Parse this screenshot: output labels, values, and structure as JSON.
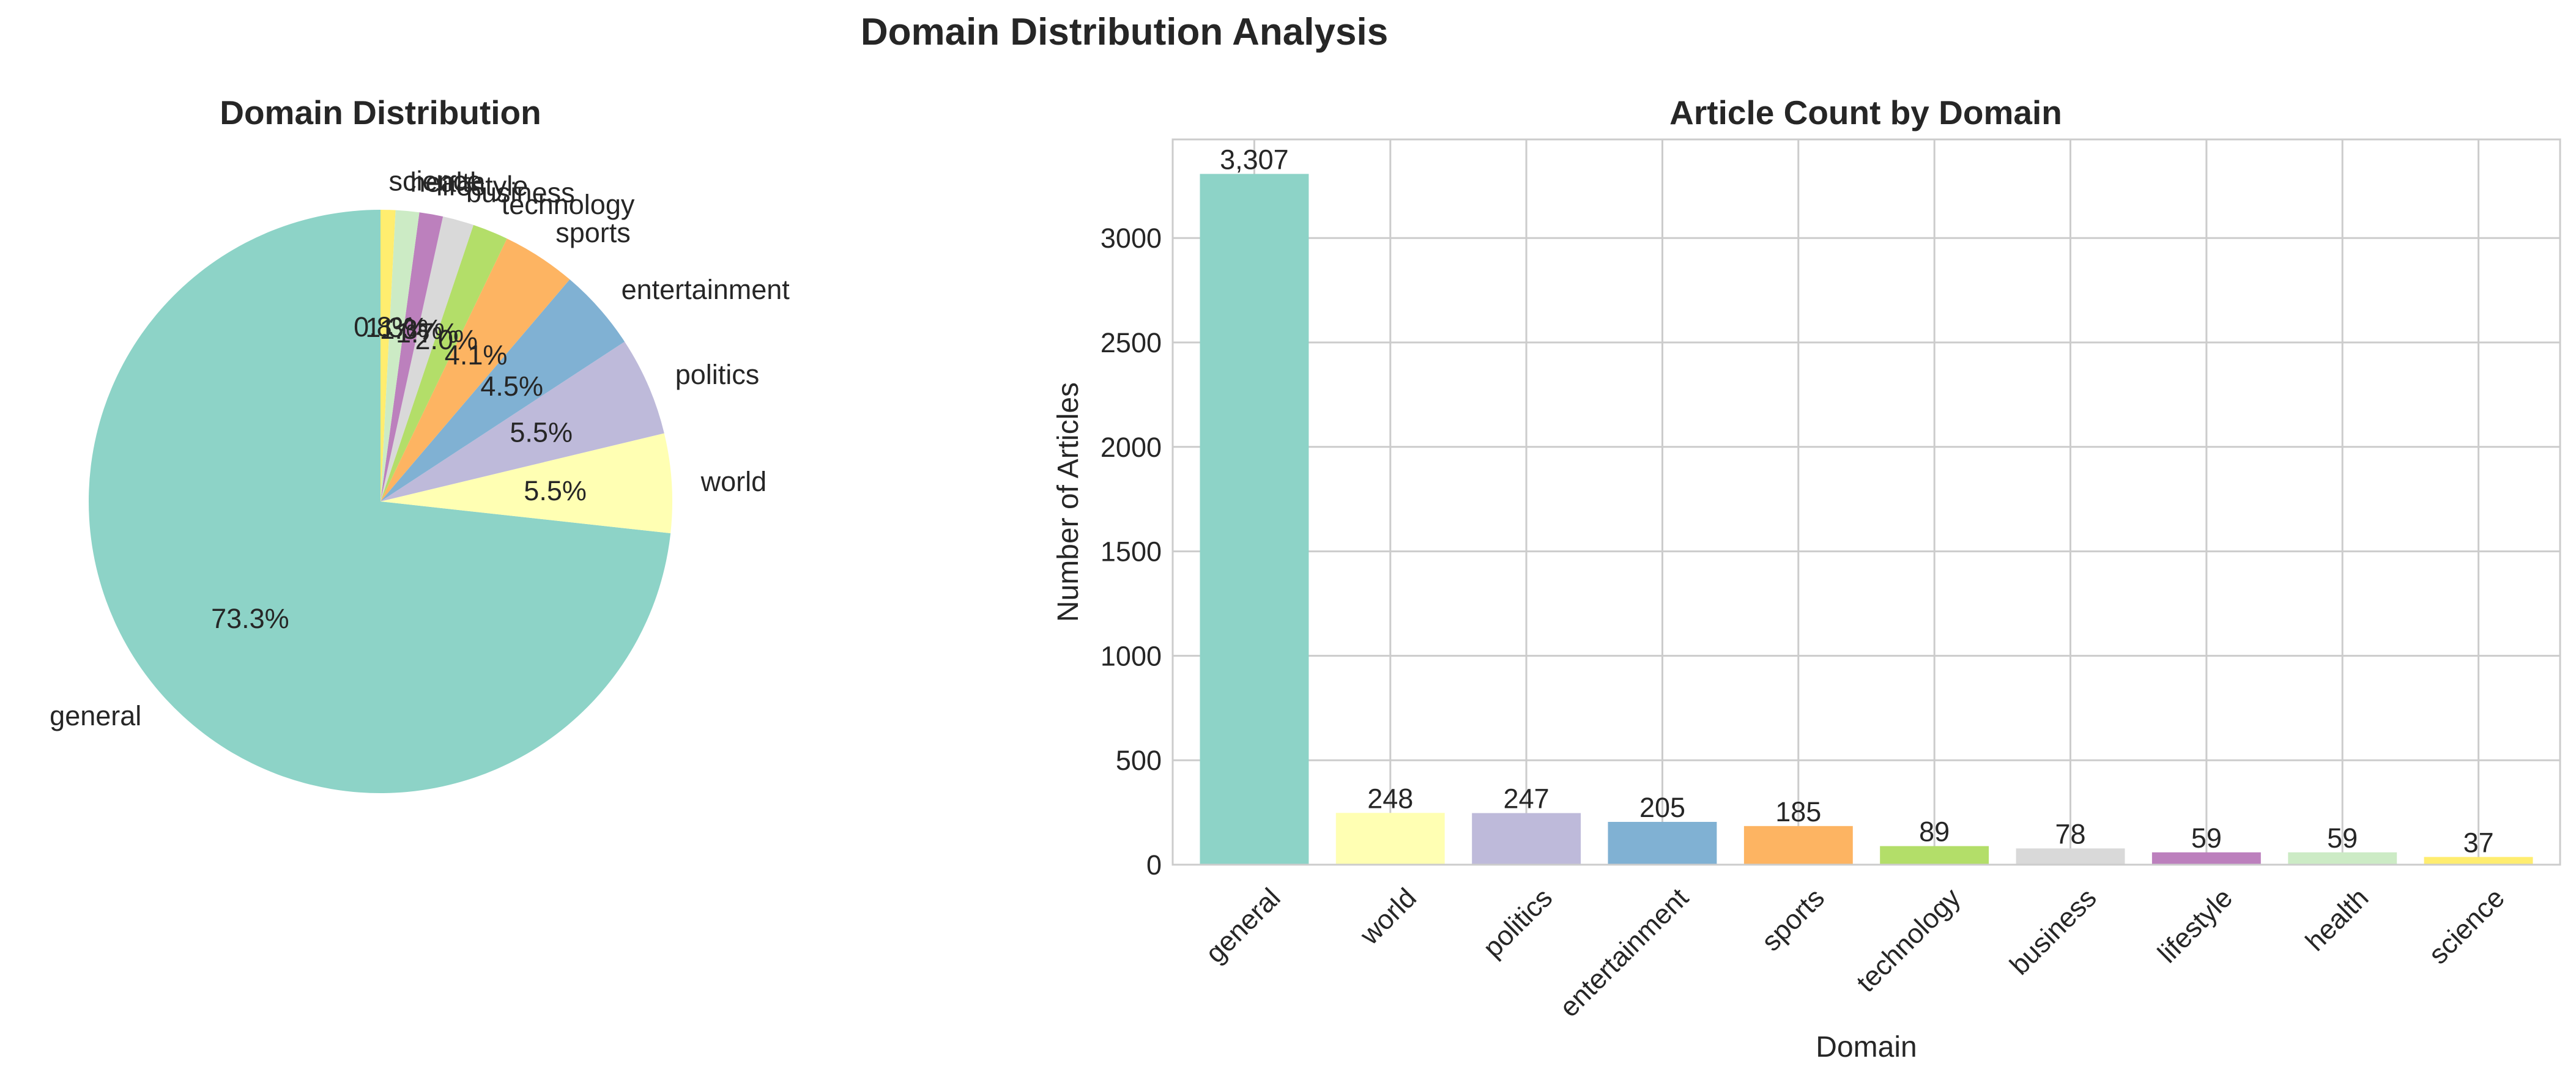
{
  "figure": {
    "suptitle": "Domain Distribution Analysis"
  },
  "chart_data": [
    {
      "type": "pie",
      "title": "Domain Distribution",
      "start_angle_deg": 90,
      "direction": "counterclockwise",
      "labels": [
        "general",
        "world",
        "politics",
        "entertainment",
        "sports",
        "technology",
        "business",
        "lifestyle",
        "health",
        "science"
      ],
      "values": [
        3307,
        248,
        247,
        205,
        185,
        89,
        78,
        59,
        59,
        37
      ],
      "percent_labels": [
        "73.3%",
        "5.5%",
        "5.5%",
        "4.5%",
        "4.1%",
        "2.0%",
        "1.7%",
        "1.3%",
        "1.3%",
        "0.8%"
      ],
      "colors": [
        "#8dd3c7",
        "#ffffb3",
        "#bebada",
        "#80b1d3",
        "#fdb462",
        "#b3de69",
        "#d9d9d9",
        "#bc80bd",
        "#ccebc5",
        "#ffed6f"
      ]
    },
    {
      "type": "bar",
      "title": "Article Count by Domain",
      "xlabel": "Domain",
      "ylabel": "Number of Articles",
      "categories": [
        "general",
        "world",
        "politics",
        "entertainment",
        "sports",
        "technology",
        "business",
        "lifestyle",
        "health",
        "science"
      ],
      "values": [
        3307,
        248,
        247,
        205,
        185,
        89,
        78,
        59,
        59,
        37
      ],
      "value_labels": [
        "3,307",
        "248",
        "247",
        "205",
        "185",
        "89",
        "78",
        "59",
        "59",
        "37"
      ],
      "colors": [
        "#8dd3c7",
        "#ffffb3",
        "#bebada",
        "#80b1d3",
        "#fdb462",
        "#b3de69",
        "#d9d9d9",
        "#bc80bd",
        "#ccebc5",
        "#ffed6f"
      ],
      "yticks": [
        0,
        500,
        1000,
        1500,
        2000,
        2500,
        3000
      ],
      "ylim": [
        0,
        3472
      ],
      "grid": true,
      "xtick_rotation_deg": 45
    }
  ]
}
